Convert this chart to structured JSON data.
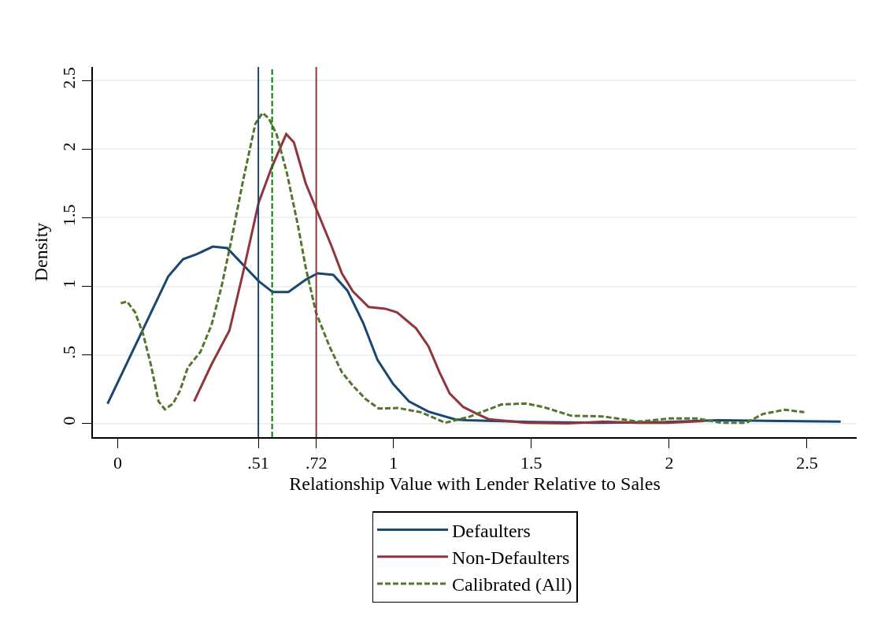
{
  "chart_data": {
    "type": "line",
    "xlabel": "Relationship Value with Lender Relative to Sales",
    "ylabel": "Density",
    "xlim": [
      -0.09,
      2.68
    ],
    "ylim": [
      -0.1,
      2.6
    ],
    "xticks": [
      0,
      {
        "value": 0.51,
        "label": ".51"
      },
      {
        "value": 0.72,
        "label": ".72"
      },
      1,
      1.5,
      2,
      2.5
    ],
    "yticks": [
      0,
      {
        "value": 0.5,
        "label": ".5"
      },
      1,
      1.5,
      2,
      2.5
    ],
    "grid": "y",
    "legend": "bottom",
    "marker": "none",
    "series": [
      {
        "name": "Defaulters",
        "color": "#1a476f",
        "line_style": "solid",
        "x": [
          -0.037,
          0.183,
          0.237,
          0.285,
          0.345,
          0.397,
          0.511,
          0.562,
          0.619,
          0.682,
          0.725,
          0.782,
          0.833,
          0.89,
          0.942,
          0.999,
          1.056,
          1.127,
          1.224,
          1.264,
          1.5,
          1.733,
          1.987,
          2.178,
          2.406,
          2.622
        ],
        "values": [
          0.143,
          1.072,
          1.198,
          1.233,
          1.29,
          1.279,
          1.038,
          0.958,
          0.958,
          1.049,
          1.095,
          1.084,
          0.969,
          0.734,
          0.464,
          0.287,
          0.161,
          0.086,
          0.029,
          0.023,
          0.01,
          0.005,
          0.01,
          0.023,
          0.018,
          0.013
        ]
      },
      {
        "name": "Non-Defaulters",
        "color": "#90353b",
        "line_style": "solid",
        "x": [
          0.277,
          0.34,
          0.405,
          0.454,
          0.511,
          0.557,
          0.611,
          0.639,
          0.682,
          0.725,
          0.776,
          0.813,
          0.853,
          0.91,
          0.97,
          1.013,
          1.082,
          1.127,
          1.167,
          1.204,
          1.253,
          1.31,
          1.346,
          1.48,
          1.632,
          1.759,
          1.886,
          2.0,
          2.127
        ],
        "values": [
          0.161,
          0.43,
          0.677,
          1.095,
          1.61,
          1.86,
          2.11,
          2.05,
          1.75,
          1.54,
          1.29,
          1.095,
          0.963,
          0.849,
          0.837,
          0.81,
          0.694,
          0.562,
          0.373,
          0.218,
          0.12,
          0.063,
          0.031,
          0.005,
          0.0,
          0.013,
          0.005,
          0.005,
          0.018
        ]
      },
      {
        "name": "Calibrated (All)",
        "color": "#55752f",
        "line_style": "dashed",
        "x": [
          0.011,
          0.034,
          0.063,
          0.091,
          0.12,
          0.148,
          0.171,
          0.2,
          0.225,
          0.254,
          0.3,
          0.34,
          0.377,
          0.411,
          0.454,
          0.499,
          0.525,
          0.548,
          0.576,
          0.614,
          0.654,
          0.682,
          0.719,
          0.768,
          0.813,
          0.853,
          0.899,
          0.947,
          1.016,
          1.099,
          1.188,
          1.277,
          1.391,
          1.48,
          1.543,
          1.645,
          1.759,
          1.886,
          2.0,
          2.1,
          2.19,
          2.28,
          2.34,
          2.42,
          2.49
        ],
        "values": [
          0.877,
          0.889,
          0.81,
          0.66,
          0.43,
          0.161,
          0.103,
          0.143,
          0.235,
          0.407,
          0.522,
          0.717,
          1.003,
          1.325,
          1.766,
          2.185,
          2.265,
          2.225,
          2.11,
          1.823,
          1.44,
          1.135,
          0.81,
          0.562,
          0.373,
          0.275,
          0.178,
          0.108,
          0.113,
          0.082,
          0.005,
          0.05,
          0.138,
          0.146,
          0.12,
          0.056,
          0.051,
          0.013,
          0.036,
          0.036,
          0.005,
          0.005,
          0.069,
          0.1,
          0.082
        ]
      }
    ],
    "ref_lines": [
      {
        "axis": "x",
        "value": 0.51,
        "color": "#1a476f",
        "line_style": "solid"
      },
      {
        "axis": "x",
        "value": 0.56,
        "color": "#008000",
        "line_style": "dashed"
      },
      {
        "axis": "x",
        "value": 0.72,
        "color": "#90353b",
        "line_style": "solid"
      }
    ]
  }
}
